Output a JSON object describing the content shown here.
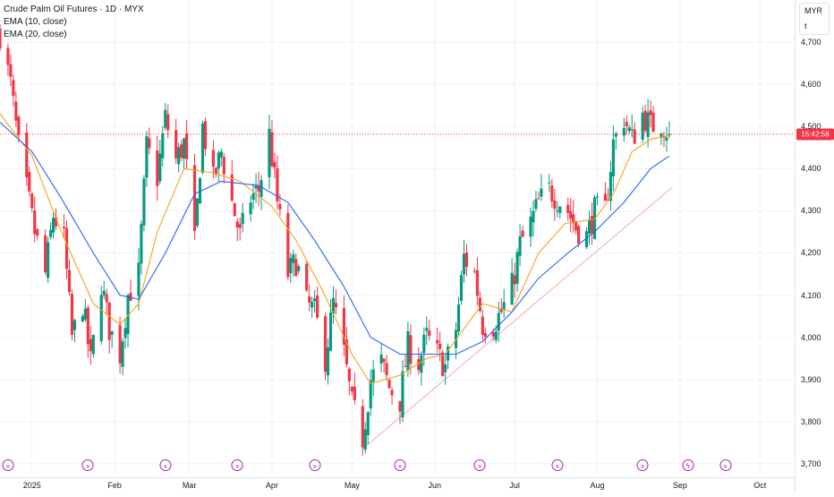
{
  "legend": {
    "title": "Crude Palm Oil Futures · 1D · MYX",
    "ema_fast": "EMA (10, close)",
    "ema_slow": "EMA (20, close)"
  },
  "price_scale": {
    "currency": "MYR",
    "unit": "t",
    "last_price_time": "15:42:58",
    "last_price": 4482
  },
  "colors": {
    "up": "#089981",
    "down": "#f23645",
    "ema_fast": "#f7a21b",
    "ema_slow": "#2962ff",
    "trendline": "#f7b6c0",
    "grid": "#f0f3fa",
    "last_price_line": "#f23645"
  },
  "events": {
    "icon_name": "replay-arrow-icon",
    "alt_icon_name": "flash-icon",
    "dates": [
      "2024-12-23",
      "2025-01-22",
      "2025-02-20",
      "2025-03-19",
      "2025-04-17",
      "2025-05-19",
      "2025-06-18",
      "2025-07-17",
      "2025-08-18",
      "2025-09-04",
      "2025-09-18"
    ],
    "alt_index": 9
  },
  "chart_data": {
    "type": "candlestick",
    "title": "Crude Palm Oil Futures · 1D · MYX",
    "x_range": [
      "2024-12-20",
      "2025-10-14"
    ],
    "ylim": [
      3670,
      4800
    ],
    "y_ticks": [
      3700,
      3800,
      3900,
      4000,
      4100,
      4200,
      4300,
      4400,
      4500,
      4600,
      4700
    ],
    "y_tick_labels": [
      "3,700",
      "3,800",
      "3,900",
      "4,000",
      "4,100",
      "4,200",
      "4,300",
      "4,400",
      "4,500",
      "4,600",
      "4,700"
    ],
    "x_tick_labels": [
      {
        "date": "2025-01-01",
        "label": "2025"
      },
      {
        "date": "2025-02-01",
        "label": "Feb"
      },
      {
        "date": "2025-03-01",
        "label": "Mar"
      },
      {
        "date": "2025-04-01",
        "label": "Apr"
      },
      {
        "date": "2025-05-01",
        "label": "May"
      },
      {
        "date": "2025-06-01",
        "label": "Jun"
      },
      {
        "date": "2025-07-01",
        "label": "Jul"
      },
      {
        "date": "2025-08-01",
        "label": "Aug"
      },
      {
        "date": "2025-09-01",
        "label": "Sep"
      },
      {
        "date": "2025-10-01",
        "label": "Oct"
      }
    ],
    "trendline": [
      {
        "date": "2025-05-05",
        "price": 3735
      },
      {
        "date": "2025-08-29",
        "price": 4355
      }
    ],
    "series": [
      {
        "name": "Crude Palm Oil Futures",
        "type": "candles",
        "close_path": [
          [
            "2024-12-20",
            4720
          ],
          [
            "2024-12-24",
            4600
          ],
          [
            "2024-12-27",
            4450
          ],
          [
            "2025-01-02",
            4250
          ],
          [
            "2025-01-06",
            4150
          ],
          [
            "2025-01-09",
            4290
          ],
          [
            "2025-01-13",
            4230
          ],
          [
            "2025-01-16",
            4000
          ],
          [
            "2025-01-20",
            4080
          ],
          [
            "2025-01-23",
            3940
          ],
          [
            "2025-01-27",
            4130
          ],
          [
            "2025-01-30",
            4020
          ],
          [
            "2025-02-03",
            3960
          ],
          [
            "2025-02-06",
            4100
          ],
          [
            "2025-02-10",
            4150
          ],
          [
            "2025-02-13",
            4450
          ],
          [
            "2025-02-17",
            4380
          ],
          [
            "2025-02-20",
            4520
          ],
          [
            "2025-02-24",
            4420
          ],
          [
            "2025-02-27",
            4460
          ],
          [
            "2025-03-03",
            4220
          ],
          [
            "2025-03-06",
            4500
          ],
          [
            "2025-03-10",
            4370
          ],
          [
            "2025-03-13",
            4440
          ],
          [
            "2025-03-17",
            4320
          ],
          [
            "2025-03-20",
            4240
          ],
          [
            "2025-03-24",
            4330
          ],
          [
            "2025-03-27",
            4350
          ],
          [
            "2025-03-31",
            4480
          ],
          [
            "2025-04-03",
            4320
          ],
          [
            "2025-04-07",
            4150
          ],
          [
            "2025-04-10",
            4180
          ],
          [
            "2025-04-14",
            4080
          ],
          [
            "2025-04-17",
            4060
          ],
          [
            "2025-04-21",
            3950
          ],
          [
            "2025-04-24",
            4080
          ],
          [
            "2025-04-28",
            3960
          ],
          [
            "2025-05-01",
            3840
          ],
          [
            "2025-05-05",
            3760
          ],
          [
            "2025-05-08",
            3900
          ],
          [
            "2025-05-12",
            3940
          ],
          [
            "2025-05-15",
            3880
          ],
          [
            "2025-05-19",
            3850
          ],
          [
            "2025-05-22",
            3980
          ],
          [
            "2025-05-26",
            3940
          ],
          [
            "2025-05-29",
            4000
          ],
          [
            "2025-06-02",
            3960
          ],
          [
            "2025-06-05",
            3930
          ],
          [
            "2025-06-09",
            4020
          ],
          [
            "2025-06-12",
            4190
          ],
          [
            "2025-06-16",
            4150
          ],
          [
            "2025-06-19",
            4030
          ],
          [
            "2025-06-23",
            4030
          ],
          [
            "2025-06-26",
            4060
          ],
          [
            "2025-06-30",
            4120
          ],
          [
            "2025-07-03",
            4220
          ],
          [
            "2025-07-07",
            4270
          ],
          [
            "2025-07-10",
            4320
          ],
          [
            "2025-07-14",
            4350
          ],
          [
            "2025-07-17",
            4330
          ],
          [
            "2025-07-21",
            4300
          ],
          [
            "2025-07-24",
            4260
          ],
          [
            "2025-07-28",
            4240
          ],
          [
            "2025-07-31",
            4300
          ],
          [
            "2025-08-04",
            4300
          ],
          [
            "2025-08-07",
            4460
          ],
          [
            "2025-08-11",
            4520
          ],
          [
            "2025-08-14",
            4470
          ],
          [
            "2025-08-18",
            4530
          ],
          [
            "2025-08-21",
            4500
          ],
          [
            "2025-08-25",
            4510
          ],
          [
            "2025-08-28",
            4482
          ]
        ]
      },
      {
        "name": "EMA (10, close)",
        "type": "line",
        "points": [
          [
            "2024-12-20",
            4530
          ],
          [
            "2025-01-01",
            4430
          ],
          [
            "2025-01-12",
            4250
          ],
          [
            "2025-01-24",
            4080
          ],
          [
            "2025-02-03",
            4030
          ],
          [
            "2025-02-10",
            4080
          ],
          [
            "2025-02-17",
            4250
          ],
          [
            "2025-02-27",
            4400
          ],
          [
            "2025-03-10",
            4390
          ],
          [
            "2025-03-20",
            4370
          ],
          [
            "2025-04-01",
            4310
          ],
          [
            "2025-04-10",
            4230
          ],
          [
            "2025-04-20",
            4110
          ],
          [
            "2025-05-01",
            3960
          ],
          [
            "2025-05-08",
            3890
          ],
          [
            "2025-05-19",
            3910
          ],
          [
            "2025-05-29",
            3950
          ],
          [
            "2025-06-05",
            3960
          ],
          [
            "2025-06-12",
            4020
          ],
          [
            "2025-06-19",
            4080
          ],
          [
            "2025-06-30",
            4060
          ],
          [
            "2025-07-10",
            4200
          ],
          [
            "2025-07-20",
            4270
          ],
          [
            "2025-07-31",
            4280
          ],
          [
            "2025-08-07",
            4340
          ],
          [
            "2025-08-14",
            4440
          ],
          [
            "2025-08-21",
            4470
          ],
          [
            "2025-08-28",
            4478
          ]
        ]
      },
      {
        "name": "EMA (20, close)",
        "type": "line",
        "points": [
          [
            "2024-12-20",
            4510
          ],
          [
            "2025-01-01",
            4440
          ],
          [
            "2025-01-12",
            4330
          ],
          [
            "2025-01-24",
            4200
          ],
          [
            "2025-02-03",
            4100
          ],
          [
            "2025-02-10",
            4090
          ],
          [
            "2025-02-20",
            4200
          ],
          [
            "2025-03-03",
            4340
          ],
          [
            "2025-03-13",
            4370
          ],
          [
            "2025-03-27",
            4360
          ],
          [
            "2025-04-07",
            4320
          ],
          [
            "2025-04-17",
            4230
          ],
          [
            "2025-04-28",
            4120
          ],
          [
            "2025-05-08",
            4000
          ],
          [
            "2025-05-19",
            3960
          ],
          [
            "2025-05-29",
            3960
          ],
          [
            "2025-06-09",
            3960
          ],
          [
            "2025-06-19",
            3990
          ],
          [
            "2025-06-30",
            4060
          ],
          [
            "2025-07-10",
            4140
          ],
          [
            "2025-07-21",
            4200
          ],
          [
            "2025-07-31",
            4250
          ],
          [
            "2025-08-11",
            4320
          ],
          [
            "2025-08-21",
            4400
          ],
          [
            "2025-08-28",
            4430
          ]
        ]
      }
    ]
  }
}
